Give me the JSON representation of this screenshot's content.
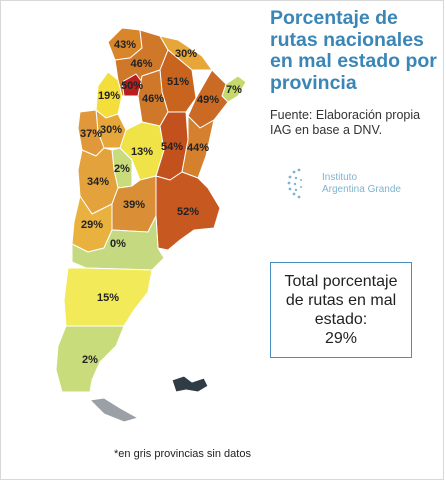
{
  "title": "Porcentaje de rutas nacionales en mal estado por provincia",
  "source": "Fuente: Elaboración propia IAG en base a DNV.",
  "logo": {
    "line1": "Instituto",
    "line2": "Argentina Grande",
    "icon": "dotted-globe-icon"
  },
  "total": {
    "line1": "Total porcentaje",
    "line2": "de rutas en mal",
    "line3": "estado:",
    "value": "29%"
  },
  "footnote": "*en gris provincias sin datos",
  "provinces": [
    {
      "id": "jujuy",
      "label": "43%",
      "value": 43,
      "color": "#d9852a"
    },
    {
      "id": "salta",
      "label": "46%",
      "value": 46,
      "color": "#d0782a"
    },
    {
      "id": "formosa",
      "label": "30%",
      "value": 30,
      "color": "#e6a63a"
    },
    {
      "id": "chaco",
      "label": "51%",
      "value": 51,
      "color": "#c9641f"
    },
    {
      "id": "misiones",
      "label": "7%",
      "value": 7,
      "color": "#c5d86b"
    },
    {
      "id": "tucuman",
      "label": "50%",
      "value": 50,
      "color": "#b81e1e"
    },
    {
      "id": "catamarca",
      "label": "19%",
      "value": 19,
      "color": "#f3de3c"
    },
    {
      "id": "santiago-del-estero",
      "label": "46%",
      "value": 46,
      "color": "#d0782a"
    },
    {
      "id": "corrientes",
      "label": "49%",
      "value": 49,
      "color": "#cb6a24"
    },
    {
      "id": "la-rioja",
      "label": "30%",
      "value": 30,
      "color": "#e6a63a"
    },
    {
      "id": "san-juan",
      "label": "37%",
      "value": 37,
      "color": "#e0983a"
    },
    {
      "id": "cordoba",
      "label": "13%",
      "value": 13,
      "color": "#f0e348"
    },
    {
      "id": "santa-fe",
      "label": "54%",
      "value": 54,
      "color": "#c2511e"
    },
    {
      "id": "entre-rios",
      "label": "44%",
      "value": 44,
      "color": "#d4802c"
    },
    {
      "id": "san-luis",
      "label": "2%",
      "value": 2,
      "color": "#c9dc7c"
    },
    {
      "id": "mendoza",
      "label": "34%",
      "value": 34,
      "color": "#e3a23c"
    },
    {
      "id": "la-pampa",
      "label": "39%",
      "value": 39,
      "color": "#da8f36"
    },
    {
      "id": "buenos-aires",
      "label": "52%",
      "value": 52,
      "color": "#c65820"
    },
    {
      "id": "neuquen",
      "label": "29%",
      "value": 29,
      "color": "#e9b23e"
    },
    {
      "id": "rio-negro",
      "label": "0%",
      "value": 0,
      "color": "#c5d980"
    },
    {
      "id": "chubut",
      "label": "15%",
      "value": 15,
      "color": "#f2ea58"
    },
    {
      "id": "santa-cruz",
      "label": "2%",
      "value": 2,
      "color": "#c9dc7c"
    },
    {
      "id": "tierra-del-fuego",
      "label": "",
      "value": null,
      "color": "#9aa0a6"
    },
    {
      "id": "islas-malvinas",
      "label": "",
      "value": null,
      "color": "#2f3b45"
    }
  ]
}
